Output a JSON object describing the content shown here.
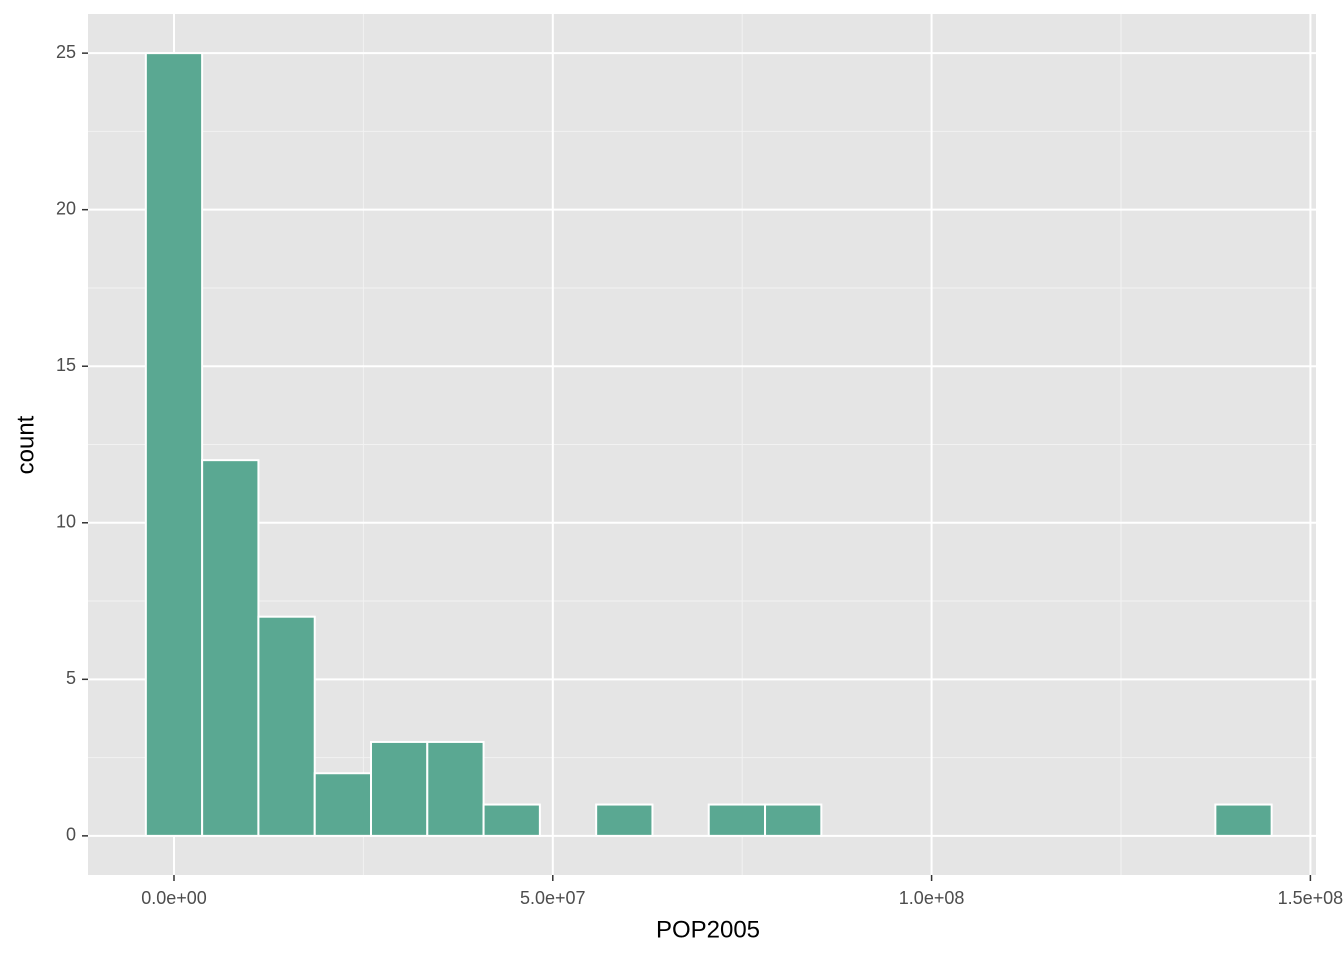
{
  "chart_data": {
    "type": "histogram",
    "x_label": "POP2005",
    "y_label": "count",
    "bins": [
      -3715000,
      3715000,
      11145000,
      18575000,
      26005000,
      33435000,
      40865000,
      48295000,
      55725000,
      63155000,
      70585000,
      78015000,
      85445000,
      92875000,
      100305000,
      107735000,
      115165000,
      122595000,
      130025000,
      137455000,
      144885000
    ],
    "values": [
      25,
      12,
      7,
      2,
      3,
      3,
      1,
      0,
      1,
      0,
      1,
      1,
      0,
      0,
      0,
      0,
      0,
      0,
      0,
      1
    ],
    "color": "#5aa892",
    "xlim": [
      -11350000,
      150740000
    ],
    "ylim": [
      -1.25,
      26.25
    ],
    "xticks": [
      {
        "value": 0,
        "label": "0.0e+00"
      },
      {
        "value": 50000000,
        "label": "5.0e+07"
      },
      {
        "value": 100000000,
        "label": "1.0e+08"
      },
      {
        "value": 150000000,
        "label": "1.5e+08"
      }
    ],
    "yticks": [
      0,
      5,
      10,
      15,
      20,
      25
    ],
    "xminor": [
      25000000,
      75000000,
      125000000
    ],
    "yminor": [
      2.5,
      7.5,
      12.5,
      17.5,
      22.5
    ],
    "grid": true
  }
}
